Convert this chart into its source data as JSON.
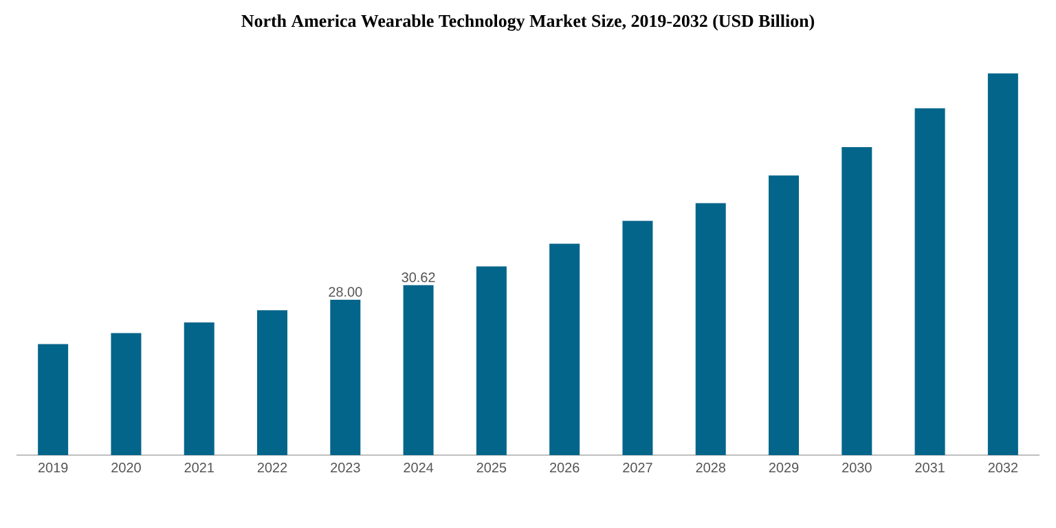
{
  "chart_data": {
    "type": "bar",
    "title": "North America Wearable Technology Market Size, 2019-2032 (USD Billion)",
    "categories": [
      "2019",
      "2020",
      "2021",
      "2022",
      "2023",
      "2024",
      "2025",
      "2026",
      "2027",
      "2028",
      "2029",
      "2030",
      "2031",
      "2032"
    ],
    "values": [
      20.0,
      22.0,
      23.9,
      26.1,
      28.0,
      30.62,
      34.0,
      38.1,
      42.2,
      45.4,
      50.4,
      55.5,
      62.5,
      68.8
    ],
    "value_labels": [
      null,
      null,
      null,
      null,
      "28.00",
      "30.62",
      null,
      null,
      null,
      null,
      null,
      null,
      null,
      null
    ],
    "color": "#04658a"
  }
}
